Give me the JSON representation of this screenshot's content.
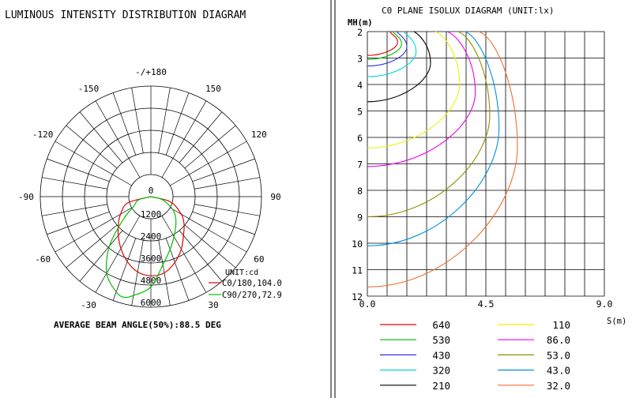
{
  "chart_data": [
    {
      "type": "polar-line",
      "title": "LUMINOUS INTENSITY DISTRIBUTION DIAGRAM",
      "unit_label": "UNIT:cd",
      "footer": "AVERAGE BEAM ANGLE(50%):88.5 DEG",
      "radial_max": 6000,
      "radial_ticks": [
        {
          "value": 0,
          "label": "0"
        },
        {
          "value": 1200,
          "label": "1200"
        },
        {
          "value": 2400,
          "label": "2400"
        },
        {
          "value": 3600,
          "label": "3600"
        },
        {
          "value": 4800,
          "label": "4800"
        },
        {
          "value": 6000,
          "label": "6000"
        }
      ],
      "angle_labels": [
        {
          "angle": 180,
          "label": "-/+180"
        },
        {
          "angle": -150,
          "label": "-150"
        },
        {
          "angle": 150,
          "label": "150"
        },
        {
          "angle": -120,
          "label": "-120"
        },
        {
          "angle": 120,
          "label": "120"
        },
        {
          "angle": -90,
          "label": "-90"
        },
        {
          "angle": 90,
          "label": "90"
        },
        {
          "angle": -60,
          "label": "-60"
        },
        {
          "angle": 60,
          "label": "60"
        },
        {
          "angle": -30,
          "label": "-30"
        },
        {
          "angle": 30,
          "label": "30"
        }
      ],
      "series": [
        {
          "name": "C0/180,104.0",
          "color": "#e00000",
          "points": [
            [
              -90,
              0
            ],
            [
              -75,
              1300
            ],
            [
              -60,
              1900
            ],
            [
              -50,
              2300
            ],
            [
              -40,
              2750
            ],
            [
              -30,
              3250
            ],
            [
              -20,
              3750
            ],
            [
              -10,
              4150
            ],
            [
              0,
              4300
            ],
            [
              10,
              4200
            ],
            [
              20,
              3800
            ],
            [
              30,
              3300
            ],
            [
              40,
              2750
            ],
            [
              50,
              2350
            ],
            [
              60,
              1900
            ],
            [
              75,
              1100
            ],
            [
              90,
              0
            ]
          ]
        },
        {
          "name": "C90/270,72.9",
          "color": "#00c000",
          "points": [
            [
              -90,
              0
            ],
            [
              -75,
              700
            ],
            [
              -60,
              1100
            ],
            [
              -50,
              2000
            ],
            [
              -40,
              3500
            ],
            [
              -30,
              4800
            ],
            [
              -20,
              5500
            ],
            [
              -15,
              5650
            ],
            [
              -10,
              5450
            ],
            [
              0,
              4900
            ],
            [
              10,
              3750
            ],
            [
              20,
              3050
            ],
            [
              30,
              2500
            ],
            [
              40,
              2100
            ],
            [
              50,
              1750
            ],
            [
              60,
              1350
            ],
            [
              75,
              650
            ],
            [
              90,
              0
            ]
          ]
        }
      ]
    },
    {
      "type": "contour",
      "title": "C0 PLANE ISOLUX DIAGRAM (UNIT:lx)",
      "ylabel": "MH(m)",
      "xlabel": "S(m)",
      "xlim": [
        0,
        9.0
      ],
      "ylim": [
        2,
        12
      ],
      "x_tick_labels": [
        {
          "value": 0,
          "label": "0.0"
        },
        {
          "value": 4.5,
          "label": "4.5"
        },
        {
          "value": 9.0,
          "label": "9.0"
        }
      ],
      "y_tick_labels": [
        {
          "value": 2,
          "label": "2"
        },
        {
          "value": 3,
          "label": "3"
        },
        {
          "value": 4,
          "label": "4"
        },
        {
          "value": 5,
          "label": "5"
        },
        {
          "value": 6,
          "label": "6"
        },
        {
          "value": 7,
          "label": "7"
        },
        {
          "value": 8,
          "label": "8"
        },
        {
          "value": 9,
          "label": "9"
        },
        {
          "value": 10,
          "label": "10"
        },
        {
          "value": 11,
          "label": "11"
        },
        {
          "value": 12,
          "label": "12"
        }
      ],
      "levels": [
        {
          "label": "640",
          "color": "#e00000",
          "y_axis": 2.9,
          "x_max": 1.15
        },
        {
          "label": "530",
          "color": "#00c000",
          "y_axis": 3.05,
          "x_max": 1.3
        },
        {
          "label": "430",
          "color": "#3030e0",
          "y_axis": 3.3,
          "x_max": 1.5
        },
        {
          "label": "320",
          "color": "#00d8d8",
          "y_axis": 3.7,
          "x_max": 1.85
        },
        {
          "label": "210",
          "color": "#000000",
          "y_axis": 4.65,
          "x_max": 2.4
        },
        {
          "label": "110",
          "color": "#f0f000",
          "y_axis": 6.4,
          "x_max": 3.5
        },
        {
          "label": "86.0",
          "color": "#f000f0",
          "y_axis": 7.1,
          "x_max": 4.1
        },
        {
          "label": "53.0",
          "color": "#909000",
          "y_axis": 9.0,
          "x_max": 4.65
        },
        {
          "label": "43.0",
          "color": "#0090e0",
          "y_axis": 10.1,
          "x_max": 5.0
        },
        {
          "label": "32.0",
          "color": "#f07030",
          "y_axis": 11.65,
          "x_max": 5.7
        }
      ]
    }
  ]
}
